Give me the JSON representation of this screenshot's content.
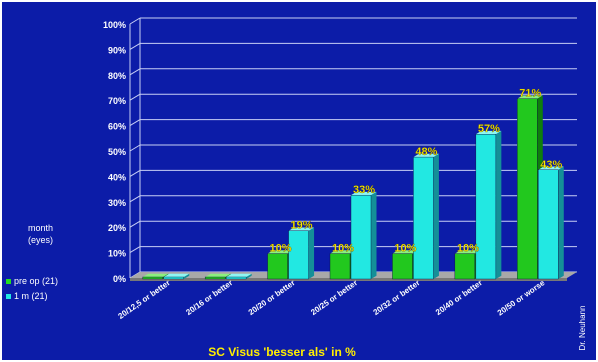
{
  "chart_data": {
    "type": "bar",
    "title": "",
    "xlabel": "SC Visus  'besser als'  in %",
    "ylabel": "",
    "ylim": [
      0,
      100
    ],
    "yticks": [
      "0%",
      "10%",
      "20%",
      "30%",
      "40%",
      "50%",
      "60%",
      "70%",
      "80%",
      "90%",
      "100%"
    ],
    "grid": true,
    "three_d": true,
    "legend_title": "month\n(eyes)",
    "legend_placement": "left",
    "categories": [
      "20/12,5 or better",
      "20/16 or better",
      "20/20 or better",
      "20/25 or better",
      "20/32 or better",
      "20/40 or better",
      "20/50 or worse"
    ],
    "series": [
      {
        "name": "pre op (21)",
        "values": [
          0,
          0,
          10,
          10,
          10,
          10,
          71
        ],
        "labels": [
          "",
          "",
          "10%",
          "10%",
          "10%",
          "10%",
          "71%"
        ]
      },
      {
        "name": "1 m (21)",
        "values": [
          0,
          0,
          19,
          33,
          48,
          57,
          43
        ],
        "labels": [
          "",
          "",
          "19%",
          "33%",
          "48%",
          "57%",
          "43%"
        ]
      }
    ],
    "credit": "Dr. Neuhann"
  },
  "colors": {
    "background": "#0C1CA8",
    "frame": "#FFFFFF",
    "grid": "#C8CFF5",
    "floor_top": "#A8A8A8",
    "floor_front": "#787878",
    "series_front": [
      "#22C81E",
      "#22E8E2"
    ],
    "series_side": [
      "#0E7E0C",
      "#148F98"
    ],
    "series_top": [
      "#8BF07E",
      "#8FF6F3"
    ],
    "value_label": "#FFEE00",
    "xlabel": "#FFEE00",
    "text": "#FFFFFF",
    "legend_markers": [
      "#22E01E",
      "#22E8E2"
    ]
  }
}
